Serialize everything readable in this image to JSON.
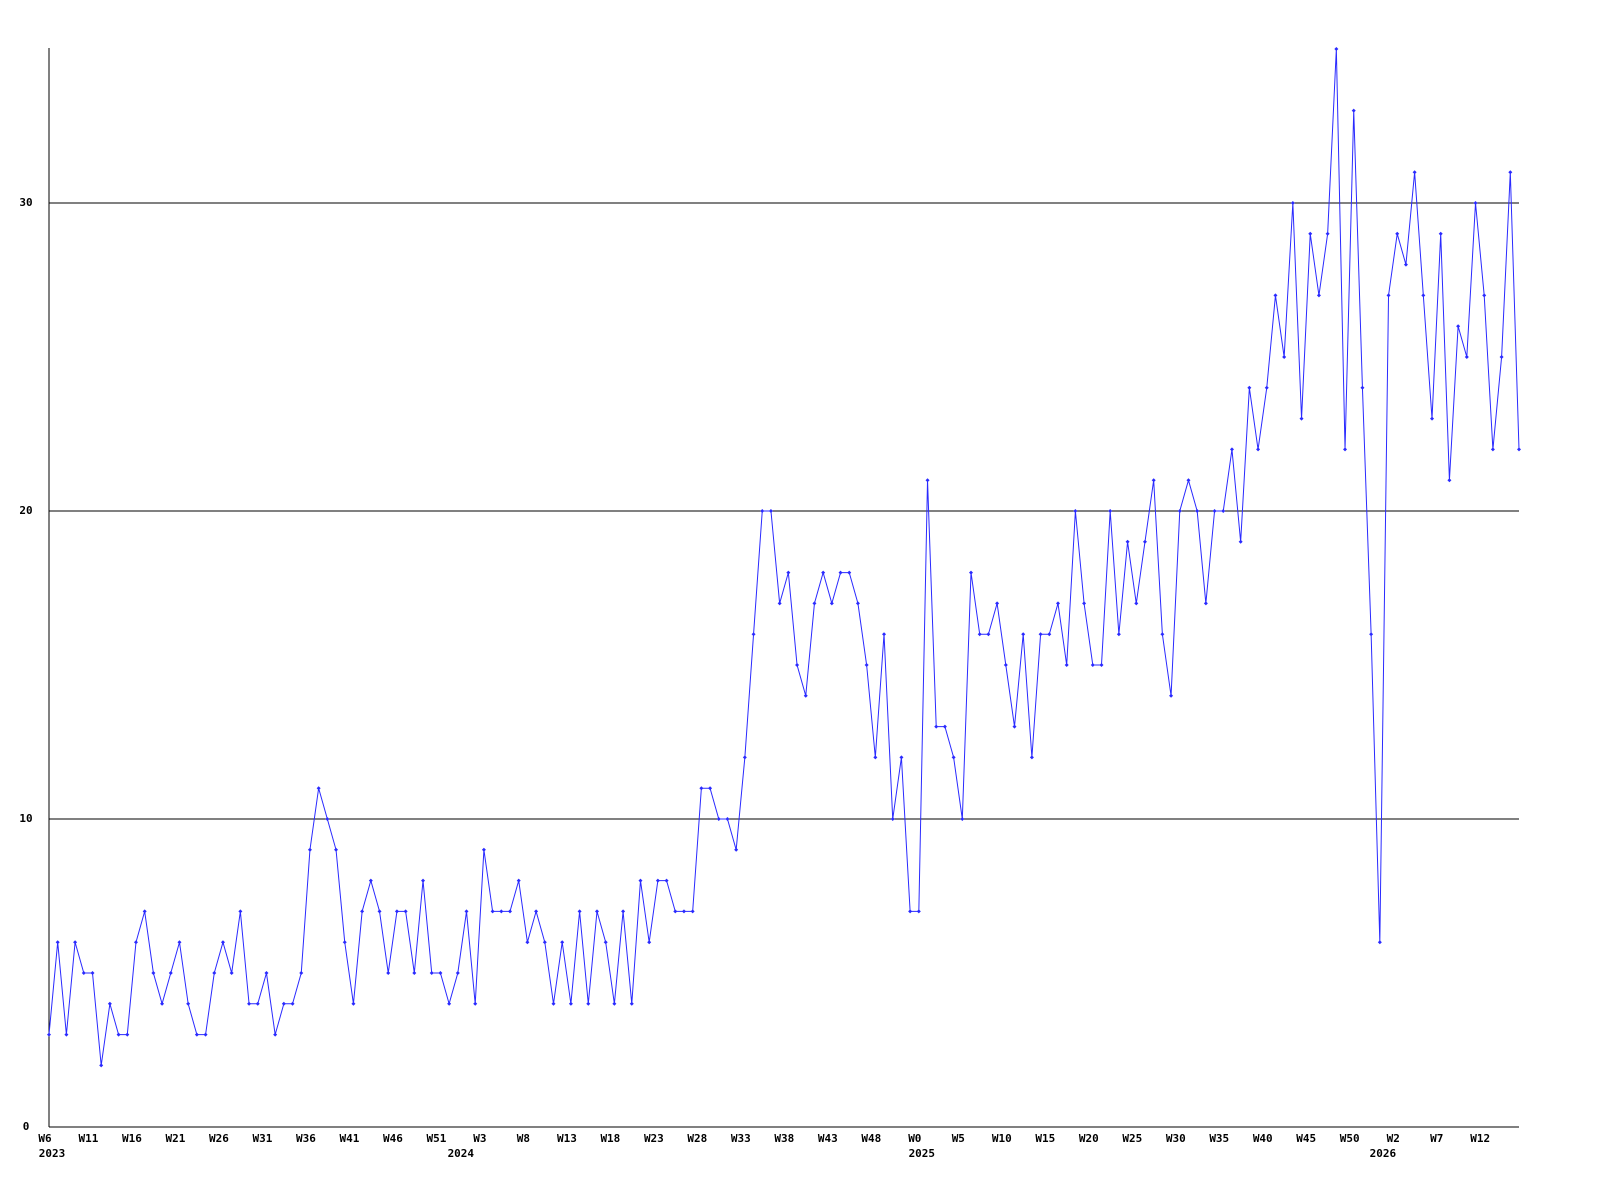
{
  "chart_data": {
    "type": "line",
    "categories": [
      "W6",
      null,
      null,
      null,
      null,
      "W11",
      null,
      null,
      null,
      null,
      "W16",
      null,
      null,
      null,
      null,
      "W21",
      null,
      null,
      null,
      null,
      "W26",
      null,
      null,
      null,
      null,
      "W31",
      null,
      null,
      null,
      null,
      "W36",
      null,
      null,
      null,
      null,
      "W41",
      null,
      null,
      null,
      null,
      "W46",
      null,
      null,
      null,
      null,
      "W51",
      null,
      null,
      null,
      null,
      "W3",
      null,
      null,
      null,
      null,
      "W8",
      null,
      null,
      null,
      null,
      "W13",
      null,
      null,
      null,
      null,
      "W18",
      null,
      null,
      null,
      null,
      "W23",
      null,
      null,
      null,
      null,
      "W28",
      null,
      null,
      null,
      null,
      "W33",
      null,
      null,
      null,
      null,
      "W38",
      null,
      null,
      null,
      null,
      "W43",
      null,
      null,
      null,
      null,
      "W48",
      null,
      null,
      null,
      null,
      "W0",
      null,
      null,
      null,
      null,
      "W5",
      null,
      null,
      null,
      null,
      "W10",
      null,
      null,
      null,
      null,
      "W15",
      null,
      null,
      null,
      null,
      "W20",
      null,
      null,
      null,
      null,
      "W25",
      null,
      null,
      null,
      null,
      "W30",
      null,
      null,
      null,
      null,
      "W35",
      null,
      null,
      null,
      null,
      "W40",
      null,
      null,
      null,
      null,
      "W45",
      null,
      null,
      null,
      null,
      "W50",
      null,
      null,
      null,
      null,
      "W2",
      null,
      null,
      null,
      null,
      "W7",
      null,
      null,
      null,
      null,
      "W12",
      null,
      null,
      null,
      null
    ],
    "year_labels": [
      {
        "value": 0,
        "label": "2023"
      },
      {
        "value": 47,
        "label": "2024"
      },
      {
        "value": 100,
        "label": "2025"
      },
      {
        "value": 153,
        "label": "2026"
      }
    ],
    "series": [
      {
        "color": "#2a2aff",
        "values": [
          3,
          6,
          3,
          6,
          5,
          5,
          2,
          4,
          3,
          3,
          6,
          7,
          5,
          4,
          5,
          6,
          4,
          3,
          3,
          5,
          6,
          5,
          7,
          4,
          4,
          5,
          3,
          4,
          4,
          5,
          9,
          11,
          10,
          9,
          6,
          4,
          7,
          8,
          7,
          5,
          7,
          7,
          5,
          8,
          5,
          5,
          4,
          5,
          7,
          4,
          9,
          7,
          7,
          7,
          8,
          6,
          7,
          6,
          4,
          6,
          4,
          7,
          4,
          7,
          6,
          4,
          7,
          4,
          8,
          6,
          8,
          8,
          7,
          7,
          7,
          11,
          11,
          10,
          10,
          9,
          12,
          16,
          20,
          20,
          17,
          18,
          15,
          14,
          17,
          18,
          17,
          18,
          18,
          17,
          15,
          12,
          16,
          10,
          12,
          7,
          7,
          21,
          13,
          13,
          12,
          10,
          18,
          16,
          16,
          17,
          15,
          13,
          16,
          12,
          16,
          16,
          17,
          15,
          20,
          17,
          15,
          15,
          20,
          16,
          19,
          17,
          19,
          21,
          16,
          14,
          20,
          21,
          20,
          17,
          20,
          20,
          22,
          19,
          24,
          22,
          24,
          27,
          25,
          30,
          23,
          29,
          27,
          29,
          35,
          22,
          33,
          24,
          16,
          6,
          27,
          29,
          28,
          31,
          27,
          23,
          29,
          21,
          26,
          25,
          30,
          27,
          22,
          25,
          31,
          22
        ]
      }
    ],
    "ylim": [
      0,
      35
    ],
    "yticks": [
      0,
      10,
      20,
      30
    ],
    "grid": true
  }
}
